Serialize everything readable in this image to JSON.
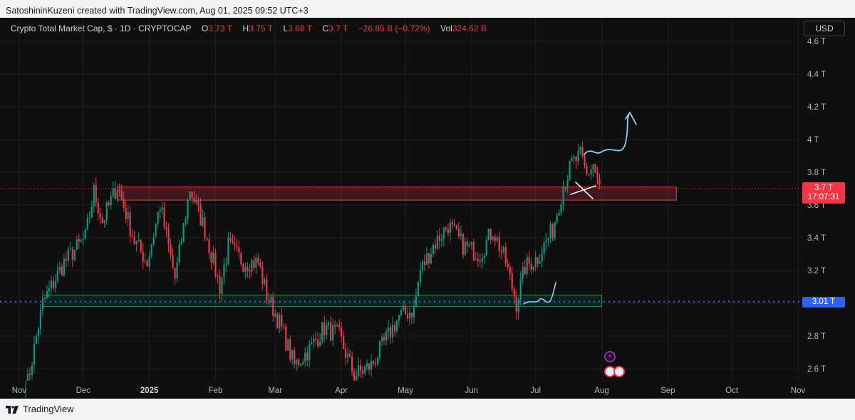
{
  "header": {
    "caption": "SatoshininKuzeni created with TradingView.com, Aug 01, 2025 09:52 UTC+3"
  },
  "legend": {
    "symbol": "Crypto Total Market Cap, $ · 1D · CRYPTOCAP",
    "o_label": "O",
    "o_value": "3.73 T",
    "h_label": "H",
    "h_value": "3.75 T",
    "l_label": "L",
    "l_value": "3.68 T",
    "c_label": "C",
    "c_value": "3.7 T",
    "change": "−26.85 B (−0.72%)",
    "vol_label": "Vol",
    "vol_value": "324.62 B"
  },
  "currency_button": "USD",
  "price_badge": {
    "value": "3.7 T",
    "countdown": "17:07:31"
  },
  "level_badge": {
    "value": "3.01 T"
  },
  "footer": {
    "brand": "TradingView"
  },
  "colors": {
    "up": "#089981",
    "down": "#f23645",
    "accent": "#2962ff",
    "resistance_zone": "#f23645",
    "support_zone": "#089981",
    "drawing": "#90caf9"
  },
  "icons": [
    "tradingview-logo-icon",
    "lightning-event-icon",
    "us-flag-event-icon"
  ],
  "chart_data": {
    "type": "candlestick",
    "symbol": "CRYPTOCAP:TOTAL",
    "interval": "1D",
    "y_unit": "T",
    "ylim": [
      2.52,
      4.68
    ],
    "y_ticks": [
      "4.6 T",
      "4.4 T",
      "4.2 T",
      "4 T",
      "3.8 T",
      "3.6 T",
      "3.4 T",
      "3.2 T",
      "3 T",
      "2.8 T",
      "2.6 T"
    ],
    "y_tick_values": [
      4.6,
      4.4,
      4.2,
      4.0,
      3.8,
      3.6,
      3.4,
      3.2,
      3.0,
      2.8,
      2.6
    ],
    "x_ticks": [
      "Nov",
      "Dec",
      "2025",
      "Feb",
      "Mar",
      "Apr",
      "May",
      "Jun",
      "Jul",
      "Aug",
      "Sep",
      "Oct",
      "Nov"
    ],
    "x_tick_dates": [
      "2024-11-01",
      "2024-12-01",
      "2025-01-01",
      "2025-02-01",
      "2025-03-01",
      "2025-04-01",
      "2025-05-01",
      "2025-06-01",
      "2025-07-01",
      "2025-08-01",
      "2025-09-01",
      "2025-10-01",
      "2025-11-01"
    ],
    "x_range": [
      "2024-10-23",
      "2025-11-01"
    ],
    "grid": true,
    "current_price": 3.7,
    "horizontal_level": 3.01,
    "resistance_zone": {
      "from": "2024-12-17",
      "to": "2025-09-05",
      "low": 3.63,
      "high": 3.71
    },
    "support_zone": {
      "from": "2024-11-12",
      "to": "2025-08-01",
      "low": 2.98,
      "high": 3.05
    },
    "anchors": [
      [
        "2024-11-04",
        2.45
      ],
      [
        "2024-11-12",
        3.0
      ],
      [
        "2024-11-22",
        3.25
      ],
      [
        "2024-12-02",
        3.4
      ],
      [
        "2024-12-06",
        3.68
      ],
      [
        "2024-12-10",
        3.5
      ],
      [
        "2024-12-17",
        3.72
      ],
      [
        "2024-12-25",
        3.38
      ],
      [
        "2024-12-31",
        3.25
      ],
      [
        "2025-01-06",
        3.6
      ],
      [
        "2025-01-13",
        3.15
      ],
      [
        "2025-01-20",
        3.7
      ],
      [
        "2025-01-27",
        3.45
      ],
      [
        "2025-02-03",
        3.1
      ],
      [
        "2025-02-07",
        3.35
      ],
      [
        "2025-02-14",
        3.25
      ],
      [
        "2025-02-21",
        3.25
      ],
      [
        "2025-02-25",
        3.05
      ],
      [
        "2025-03-03",
        2.88
      ],
      [
        "2025-03-10",
        2.62
      ],
      [
        "2025-03-17",
        2.72
      ],
      [
        "2025-03-24",
        2.85
      ],
      [
        "2025-03-31",
        2.8
      ],
      [
        "2025-04-07",
        2.56
      ],
      [
        "2025-04-15",
        2.62
      ],
      [
        "2025-04-22",
        2.78
      ],
      [
        "2025-04-28",
        2.92
      ],
      [
        "2025-05-05",
        2.96
      ],
      [
        "2025-05-08",
        3.2
      ],
      [
        "2025-05-14",
        3.35
      ],
      [
        "2025-05-21",
        3.48
      ],
      [
        "2025-05-28",
        3.35
      ],
      [
        "2025-06-05",
        3.3
      ],
      [
        "2025-06-11",
        3.45
      ],
      [
        "2025-06-17",
        3.25
      ],
      [
        "2025-06-22",
        3.0
      ],
      [
        "2025-06-26",
        3.22
      ],
      [
        "2025-07-02",
        3.28
      ],
      [
        "2025-07-09",
        3.45
      ],
      [
        "2025-07-14",
        3.72
      ],
      [
        "2025-07-18",
        3.85
      ],
      [
        "2025-07-22",
        3.9
      ],
      [
        "2025-07-25",
        3.78
      ],
      [
        "2025-07-28",
        3.85
      ],
      [
        "2025-07-31",
        3.7
      ]
    ]
  }
}
